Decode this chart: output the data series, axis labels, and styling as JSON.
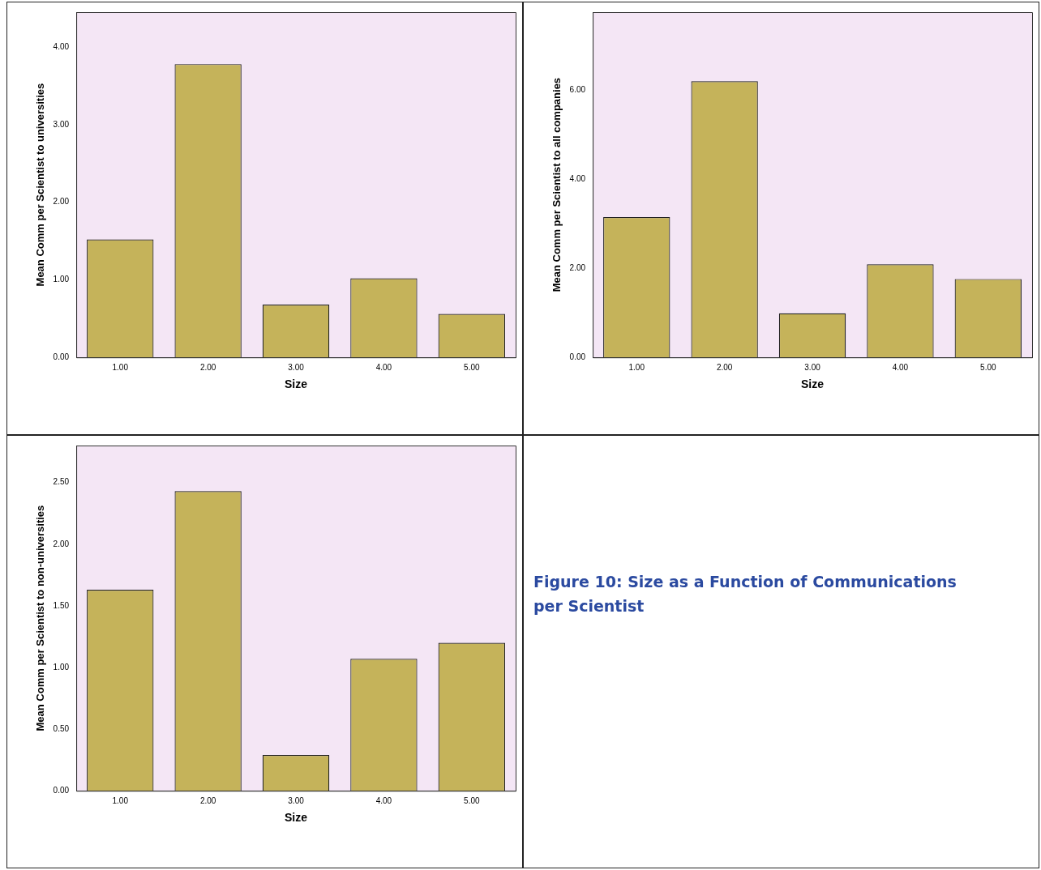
{
  "chart_data": [
    {
      "type": "bar",
      "categories": [
        "1.00",
        "2.00",
        "3.00",
        "4.00",
        "5.00"
      ],
      "values": [
        1.52,
        3.78,
        0.68,
        1.02,
        0.56
      ],
      "color": "#c5b35a",
      "xlabel": "Size",
      "ylabel": "Mean Comm per Scientist to universities",
      "ylim": [
        0,
        4.45
      ],
      "yticks": [
        {
          "value": 0,
          "label": "0.00"
        },
        {
          "value": 1,
          "label": "1.00"
        },
        {
          "value": 2,
          "label": "2.00"
        },
        {
          "value": 3,
          "label": "3.00"
        },
        {
          "value": 4,
          "label": "4.00"
        }
      ],
      "grid": false,
      "legend": false
    },
    {
      "type": "bar",
      "categories": [
        "1.00",
        "2.00",
        "3.00",
        "4.00",
        "5.00"
      ],
      "values": [
        3.15,
        6.2,
        0.99,
        2.09,
        1.76
      ],
      "color": "#c5b35a",
      "xlabel": "Size",
      "ylabel": "Mean Comm per Scientist to all companies",
      "ylim": [
        0,
        7.75
      ],
      "yticks": [
        {
          "value": 0,
          "label": "0.00"
        },
        {
          "value": 2,
          "label": "2.00"
        },
        {
          "value": 4,
          "label": "4.00"
        },
        {
          "value": 6,
          "label": "6.00"
        }
      ],
      "grid": false,
      "legend": false
    },
    {
      "type": "bar",
      "categories": [
        "1.00",
        "2.00",
        "3.00",
        "4.00",
        "5.00"
      ],
      "values": [
        1.63,
        2.43,
        0.29,
        1.07,
        1.2
      ],
      "color": "#c5b35a",
      "xlabel": "Size",
      "ylabel": "Mean Comm per Scientist to non-universities",
      "ylim": [
        0,
        2.8
      ],
      "yticks": [
        {
          "value": 0,
          "label": "0.00"
        },
        {
          "value": 0.5,
          "label": "0.50"
        },
        {
          "value": 1,
          "label": "1.00"
        },
        {
          "value": 1.5,
          "label": "1.50"
        },
        {
          "value": 2,
          "label": "2.00"
        },
        {
          "value": 2.5,
          "label": "2.50"
        }
      ],
      "grid": false,
      "legend": false
    },
    {
      "type": "other",
      "title": "Figure 10:  Size as a Function of Communications per Scientist"
    }
  ]
}
